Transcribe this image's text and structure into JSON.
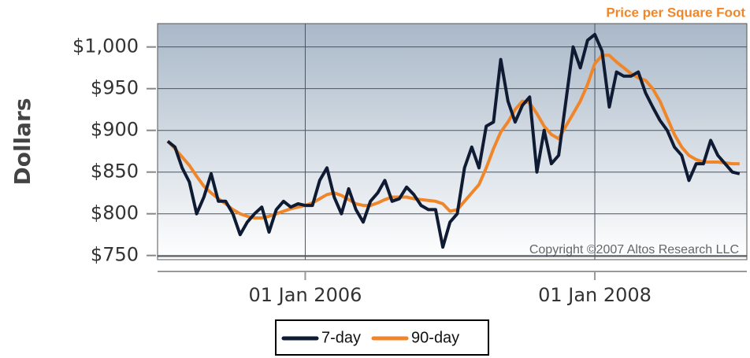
{
  "chart_data": {
    "type": "line",
    "title": "Price per Square Foot",
    "y_label": "Dollars",
    "annotation": "Copyright ©2007 Altos Research LLC",
    "x": [
      2005.05,
      2005.1,
      2005.15,
      2005.2,
      2005.25,
      2005.3,
      2005.35,
      2005.4,
      2005.45,
      2005.5,
      2005.55,
      2005.6,
      2005.65,
      2005.7,
      2005.75,
      2005.8,
      2005.85,
      2005.9,
      2005.95,
      2006.0,
      2006.05,
      2006.1,
      2006.15,
      2006.2,
      2006.25,
      2006.3,
      2006.35,
      2006.4,
      2006.45,
      2006.5,
      2006.55,
      2006.6,
      2006.65,
      2006.7,
      2006.75,
      2006.8,
      2006.85,
      2006.9,
      2006.95,
      2007.0,
      2007.05,
      2007.1,
      2007.15,
      2007.2,
      2007.25,
      2007.3,
      2007.35,
      2007.4,
      2007.45,
      2007.5,
      2007.55,
      2007.6,
      2007.65,
      2007.7,
      2007.75,
      2007.8,
      2007.85,
      2007.9,
      2007.95,
      2008.0,
      2008.05,
      2008.1,
      2008.15,
      2008.2,
      2008.25,
      2008.3,
      2008.35,
      2008.4,
      2008.45,
      2008.5,
      2008.55,
      2008.6,
      2008.65,
      2008.7,
      2008.75,
      2008.8,
      2008.85,
      2008.9,
      2008.95,
      2009.0
    ],
    "series": [
      {
        "name": "7-day",
        "color": "#0f1a33",
        "values": [
          887,
          880,
          855,
          838,
          800,
          820,
          848,
          815,
          815,
          800,
          775,
          790,
          800,
          808,
          778,
          805,
          815,
          808,
          812,
          810,
          810,
          840,
          855,
          820,
          800,
          830,
          805,
          790,
          815,
          825,
          840,
          815,
          818,
          832,
          823,
          810,
          805,
          805,
          760,
          790,
          800,
          855,
          880,
          855,
          905,
          910,
          985,
          935,
          910,
          930,
          940,
          850,
          900,
          860,
          870,
          935,
          1000,
          975,
          1008,
          1015,
          995,
          928,
          970,
          965,
          965,
          970,
          945,
          928,
          912,
          900,
          880,
          870,
          840,
          860,
          860,
          888,
          870,
          860,
          850,
          848
        ]
      },
      {
        "name": "90-day",
        "color": "#f0862a",
        "values": [
          887,
          878,
          868,
          858,
          845,
          833,
          825,
          818,
          812,
          805,
          800,
          797,
          795,
          795,
          797,
          800,
          803,
          806,
          808,
          810,
          813,
          818,
          823,
          825,
          822,
          817,
          812,
          810,
          810,
          813,
          817,
          820,
          820,
          820,
          818,
          817,
          816,
          815,
          812,
          803,
          805,
          815,
          825,
          835,
          855,
          878,
          898,
          910,
          925,
          935,
          933,
          920,
          905,
          895,
          890,
          905,
          920,
          935,
          955,
          980,
          990,
          990,
          982,
          975,
          968,
          963,
          960,
          950,
          935,
          915,
          895,
          880,
          870,
          865,
          862,
          862,
          862,
          861,
          860,
          860
        ]
      }
    ],
    "xlim": [
      2004.98,
      2009.05
    ],
    "xticks": [
      {
        "value": 2006,
        "label": "01 Jan 2006"
      },
      {
        "value": 2008,
        "label": "01 Jan 2008"
      }
    ],
    "ylim": [
      745,
      1028
    ],
    "yticks": [
      {
        "value": 750,
        "label": "$750"
      },
      {
        "value": 800,
        "label": "$800"
      },
      {
        "value": 850,
        "label": "$850"
      },
      {
        "value": 900,
        "label": "$900"
      },
      {
        "value": 950,
        "label": "$950"
      },
      {
        "value": 1000,
        "label": "$1,000"
      }
    ],
    "grid": true,
    "legend": "bottom"
  }
}
